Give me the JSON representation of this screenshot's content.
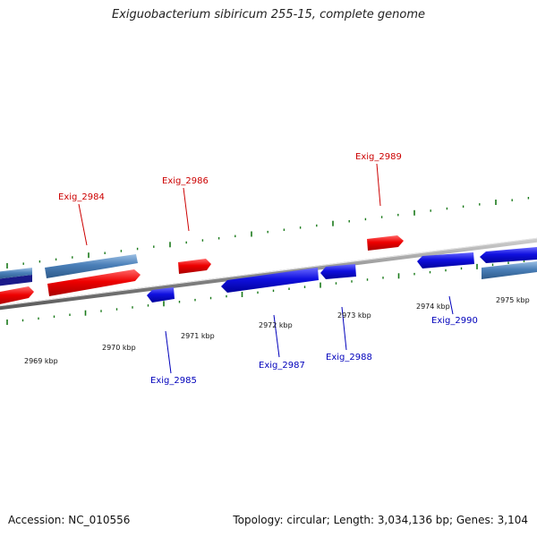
{
  "title": "Exiguobacterium sibiricum 255-15, complete genome",
  "footer": {
    "accession": "Accession: NC_010556",
    "summary": "Topology: circular; Length: 3,034,136 bp; Genes: 3,104"
  },
  "colors": {
    "forward_gene": "#ee0000",
    "reverse_gene": "#1010e0",
    "forward_cds_pale": "#4a7fb8",
    "reverse_cds_pale": "#4a7fb8",
    "backbone": "#8a8a8a",
    "tick": "#1a7a1a",
    "forward_label": "#cc0000",
    "reverse_label": "#0000bb"
  },
  "scale_labels": [
    "2969 kbp",
    "2970 kbp",
    "2971 kbp",
    "2972 kbp",
    "2973 kbp",
    "2974 kbp",
    "2975 kbp"
  ],
  "genes": [
    {
      "label": "Exig_2984",
      "strand": "forward"
    },
    {
      "label": "Exig_2985",
      "strand": "reverse"
    },
    {
      "label": "Exig_2986",
      "strand": "forward"
    },
    {
      "label": "Exig_2987",
      "strand": "reverse"
    },
    {
      "label": "Exig_2988",
      "strand": "reverse"
    },
    {
      "label": "Exig_2989",
      "strand": "forward"
    },
    {
      "label": "Exig_2990",
      "strand": "reverse"
    }
  ]
}
